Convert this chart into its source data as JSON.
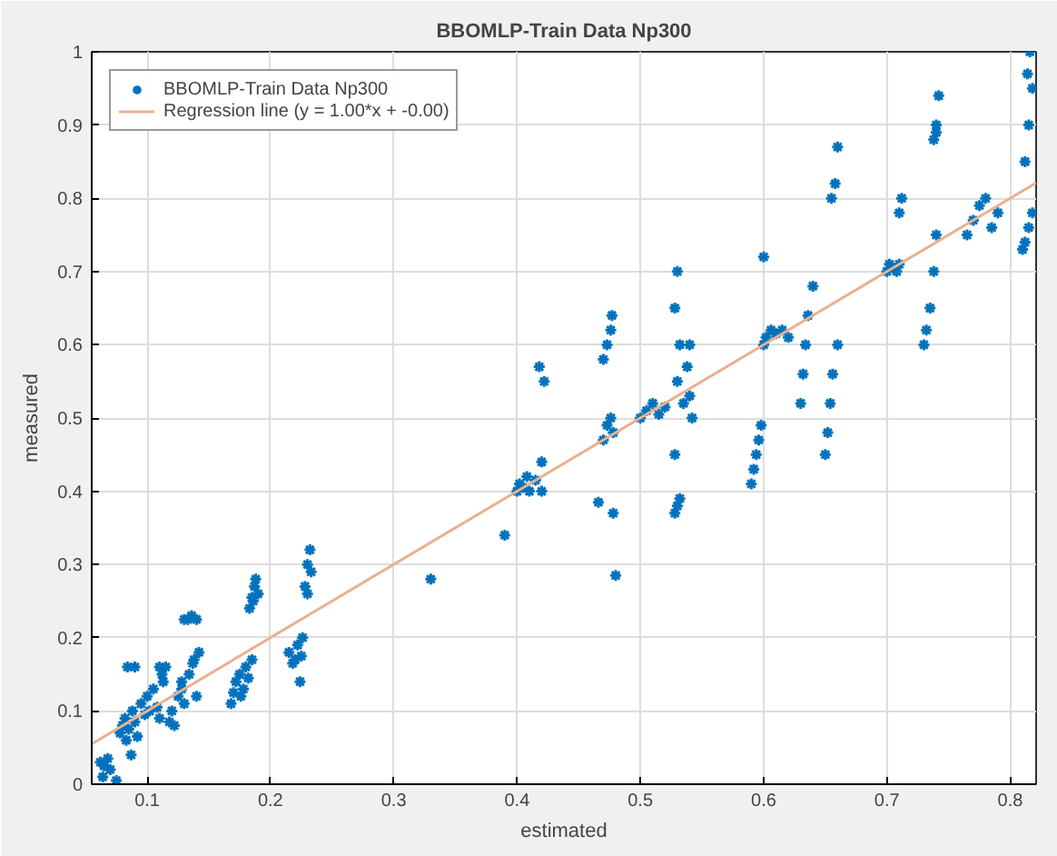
{
  "chart_data": {
    "type": "scatter",
    "title": "BBOMLP-Train Data Np300",
    "xlabel": "estimated",
    "ylabel": "measured",
    "xlim": [
      0.055,
      0.821
    ],
    "ylim": [
      0,
      1
    ],
    "xticks": [
      0.1,
      0.2,
      0.3,
      0.4,
      0.5,
      0.6,
      0.7,
      0.8
    ],
    "yticks": [
      0,
      0.1,
      0.2,
      0.3,
      0.4,
      0.5,
      0.6,
      0.7,
      0.8,
      0.9,
      1
    ],
    "grid": true,
    "legend": "top left",
    "series": [
      {
        "name": "BBOMLP-Train Data Np300",
        "color": "#0072bd",
        "marker": "cross",
        "x": [
          0.062,
          0.065,
          0.068,
          0.07,
          0.064,
          0.075,
          0.078,
          0.08,
          0.082,
          0.085,
          0.088,
          0.09,
          0.092,
          0.084,
          0.087,
          0.095,
          0.098,
          0.1,
          0.102,
          0.105,
          0.108,
          0.11,
          0.112,
          0.115,
          0.118,
          0.12,
          0.122,
          0.125,
          0.128,
          0.13,
          0.09,
          0.083,
          0.11,
          0.113,
          0.13,
          0.133,
          0.136,
          0.14,
          0.128,
          0.134,
          0.138,
          0.142,
          0.14,
          0.137,
          0.168,
          0.17,
          0.172,
          0.175,
          0.178,
          0.18,
          0.182,
          0.185,
          0.176,
          0.183,
          0.185,
          0.187,
          0.19,
          0.188,
          0.186,
          0.215,
          0.218,
          0.22,
          0.222,
          0.225,
          0.224,
          0.226,
          0.228,
          0.23,
          0.232,
          0.23,
          0.233,
          0.33,
          0.39,
          0.4,
          0.402,
          0.405,
          0.408,
          0.41,
          0.415,
          0.42,
          0.42,
          0.422,
          0.418,
          0.466,
          0.478,
          0.48,
          0.47,
          0.473,
          0.476,
          0.478,
          0.47,
          0.473,
          0.476,
          0.477,
          0.5,
          0.505,
          0.51,
          0.515,
          0.52,
          0.528,
          0.53,
          0.532,
          0.528,
          0.53,
          0.532,
          0.528,
          0.53,
          0.535,
          0.54,
          0.538,
          0.54,
          0.542,
          0.59,
          0.592,
          0.594,
          0.596,
          0.598,
          0.6,
          0.602,
          0.606,
          0.61,
          0.615,
          0.62,
          0.6,
          0.63,
          0.632,
          0.634,
          0.636,
          0.64,
          0.65,
          0.652,
          0.654,
          0.656,
          0.66,
          0.655,
          0.658,
          0.66,
          0.7,
          0.702,
          0.705,
          0.708,
          0.71,
          0.71,
          0.712,
          0.73,
          0.732,
          0.735,
          0.738,
          0.74,
          0.738,
          0.74,
          0.742,
          0.74,
          0.765,
          0.77,
          0.775,
          0.78,
          0.785,
          0.79,
          0.81,
          0.812,
          0.815,
          0.818,
          0.812,
          0.815,
          0.818,
          0.816,
          0.814
        ],
        "values": [
          0.03,
          0.025,
          0.035,
          0.02,
          0.01,
          0.005,
          0.07,
          0.08,
          0.09,
          0.075,
          0.1,
          0.085,
          0.065,
          0.16,
          0.04,
          0.11,
          0.095,
          0.12,
          0.1,
          0.13,
          0.105,
          0.09,
          0.15,
          0.16,
          0.085,
          0.1,
          0.08,
          0.12,
          0.14,
          0.11,
          0.16,
          0.06,
          0.16,
          0.14,
          0.225,
          0.225,
          0.23,
          0.225,
          0.13,
          0.15,
          0.17,
          0.18,
          0.12,
          0.165,
          0.11,
          0.125,
          0.14,
          0.15,
          0.13,
          0.16,
          0.145,
          0.17,
          0.12,
          0.24,
          0.255,
          0.27,
          0.26,
          0.28,
          0.25,
          0.18,
          0.165,
          0.17,
          0.19,
          0.175,
          0.14,
          0.2,
          0.27,
          0.3,
          0.32,
          0.26,
          0.29,
          0.28,
          0.34,
          0.4,
          0.41,
          0.405,
          0.42,
          0.4,
          0.415,
          0.44,
          0.4,
          0.55,
          0.57,
          0.385,
          0.37,
          0.285,
          0.47,
          0.49,
          0.5,
          0.48,
          0.58,
          0.6,
          0.62,
          0.64,
          0.5,
          0.51,
          0.52,
          0.505,
          0.515,
          0.37,
          0.38,
          0.39,
          0.45,
          0.55,
          0.6,
          0.65,
          0.7,
          0.52,
          0.53,
          0.57,
          0.6,
          0.5,
          0.41,
          0.43,
          0.45,
          0.47,
          0.49,
          0.6,
          0.61,
          0.62,
          0.615,
          0.62,
          0.61,
          0.72,
          0.52,
          0.56,
          0.6,
          0.64,
          0.68,
          0.45,
          0.48,
          0.52,
          0.56,
          0.6,
          0.8,
          0.82,
          0.87,
          0.7,
          0.71,
          0.705,
          0.7,
          0.71,
          0.78,
          0.8,
          0.6,
          0.62,
          0.65,
          0.7,
          0.75,
          0.88,
          0.9,
          0.94,
          0.89,
          0.75,
          0.77,
          0.79,
          0.8,
          0.76,
          0.78,
          0.73,
          0.74,
          0.76,
          0.78,
          0.85,
          0.9,
          0.95,
          1.0,
          0.97
        ]
      },
      {
        "name": "Regression line (y = 1.00*x + -0.00)",
        "color": "#eab08f",
        "type": "line",
        "line_style": "solid",
        "x": [
          0.055,
          0.821
        ],
        "values": [
          0.055,
          0.821
        ]
      }
    ]
  }
}
